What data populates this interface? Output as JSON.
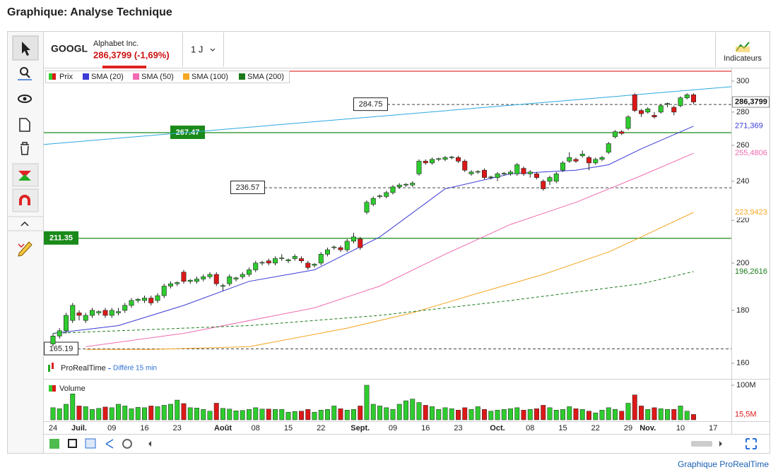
{
  "header": {
    "title": "Graphique: Analyse Technique"
  },
  "quote": {
    "symbol": "GOOGL",
    "name": "Alphabet Inc.",
    "price_change": "286,3799 (-1,69%)",
    "period": "1 J"
  },
  "toolbar": {
    "indicators": "Indicateurs"
  },
  "watermark": {
    "source": "ProRealTime",
    "delay": "Différé 15 min"
  },
  "footer": {
    "link": "Graphique ProRealTime"
  },
  "chart_data": {
    "type": "candlestick",
    "name": "Prix",
    "log_scale": true,
    "up_color": "#2ecc2e",
    "down_color": "#dd1818",
    "ylim": [
      308.6,
      155
    ],
    "yticks": [
      160,
      180,
      200,
      220,
      240,
      260,
      280,
      300
    ],
    "categories": [
      "24",
      null,
      null,
      null,
      "Juil.",
      null,
      null,
      null,
      null,
      "09",
      null,
      null,
      null,
      null,
      "16",
      null,
      null,
      null,
      null,
      "23",
      null,
      null,
      null,
      null,
      null,
      null,
      "Août",
      null,
      null,
      null,
      null,
      "08",
      null,
      null,
      null,
      null,
      "15",
      null,
      null,
      null,
      null,
      "22",
      null,
      null,
      null,
      null,
      null,
      "Sept.",
      null,
      null,
      null,
      null,
      "09",
      null,
      null,
      null,
      null,
      "16",
      null,
      null,
      null,
      null,
      "23",
      null,
      null,
      null,
      null,
      null,
      "Oct.",
      null,
      null,
      null,
      null,
      "08",
      null,
      null,
      null,
      null,
      "15",
      null,
      null,
      null,
      null,
      "22",
      null,
      null,
      null,
      null,
      "29",
      null,
      null,
      "Nov.",
      null,
      null,
      null,
      null,
      "10",
      null,
      null,
      null,
      null,
      "17"
    ],
    "open": [
      167,
      170,
      172,
      176,
      179,
      176,
      178,
      179,
      180,
      178,
      179,
      180,
      182,
      184,
      184,
      185,
      184,
      186,
      190,
      191,
      196,
      192,
      192,
      193,
      194,
      195,
      190,
      191,
      193,
      194,
      195,
      197,
      200,
      201,
      200,
      202,
      201,
      202,
      202,
      200,
      199,
      200,
      204,
      207,
      207,
      206,
      210,
      211,
      224,
      228,
      232,
      232,
      234,
      237,
      238,
      238,
      244,
      251,
      250,
      252,
      252,
      253,
      253,
      251,
      244,
      245,
      246,
      242,
      242,
      244,
      244,
      244,
      247,
      244,
      244,
      240,
      240,
      240,
      246,
      251,
      252,
      254,
      253,
      250,
      252,
      256,
      265,
      268,
      270,
      291,
      281,
      280,
      278,
      280,
      285,
      283,
      284,
      289,
      291,
      null,
      null,
      null
    ],
    "high": [
      171,
      173,
      179,
      183,
      180,
      179,
      181,
      180,
      181,
      181,
      181,
      183,
      185,
      185,
      186,
      186,
      187,
      191,
      192,
      192,
      197,
      193,
      194,
      195,
      196,
      196,
      191,
      195,
      194,
      196,
      198,
      201,
      201,
      202,
      203,
      204,
      202,
      204,
      203,
      201,
      200,
      205,
      207,
      208,
      208,
      211,
      214,
      212,
      230,
      232,
      233,
      235,
      238,
      239,
      239,
      240,
      252,
      252,
      253,
      253,
      254,
      254,
      254,
      252,
      246,
      246,
      247,
      243,
      245,
      245,
      246,
      250,
      248,
      246,
      245,
      241,
      243,
      245,
      251,
      256,
      253,
      257,
      254,
      253,
      254,
      262,
      269,
      269,
      278,
      292,
      282,
      283,
      280,
      285,
      286,
      284,
      290,
      292,
      292,
      null,
      null,
      null
    ],
    "low": [
      166,
      169,
      171,
      175,
      176,
      175,
      177,
      178,
      177,
      177,
      178,
      179,
      181,
      183,
      183,
      182,
      183,
      185,
      189,
      190,
      191,
      191,
      191,
      192,
      193,
      190,
      188,
      190,
      192,
      193,
      194,
      196,
      199,
      199,
      199,
      201,
      200,
      201,
      200,
      197,
      198,
      199,
      203,
      206,
      205,
      205,
      209,
      206,
      223,
      227,
      231,
      231,
      233,
      236,
      237,
      237,
      243,
      249,
      249,
      251,
      251,
      252,
      250,
      245,
      243,
      244,
      241,
      241,
      240,
      243,
      243,
      243,
      243,
      242,
      241,
      235,
      238,
      239,
      245,
      250,
      250,
      253,
      246,
      249,
      251,
      255,
      264,
      266,
      269,
      280,
      277,
      279,
      276,
      279,
      283,
      278,
      283,
      288,
      285,
      null,
      null,
      null
    ],
    "close": [
      170,
      172,
      178,
      182,
      178,
      178,
      180,
      179.5,
      178,
      180,
      179.5,
      182,
      184,
      184.5,
      185,
      183,
      186,
      190,
      191,
      191.5,
      192,
      192.5,
      193,
      194,
      195,
      191,
      190.2,
      194,
      193.5,
      195,
      197,
      200,
      200.3,
      200,
      202,
      202.3,
      201.5,
      203,
      201,
      198,
      199.5,
      204,
      206,
      207.3,
      206,
      210,
      212,
      207,
      229,
      231,
      232.3,
      234,
      237,
      238,
      238.4,
      239,
      251,
      250,
      252,
      252.4,
      253,
      253.3,
      251,
      246,
      245,
      245.3,
      242,
      242.3,
      244,
      244.3,
      245,
      249,
      244,
      245,
      242,
      236,
      242,
      244,
      250,
      253,
      251,
      255,
      250,
      252,
      253,
      261,
      268,
      267,
      277,
      281,
      279,
      282,
      277,
      284,
      285.4,
      280,
      289,
      291,
      286.3799,
      null,
      null,
      null
    ],
    "last_label": {
      "value": 286.3799,
      "label": "286,3799"
    },
    "series": [
      {
        "name": "SMA (20)",
        "color": "#3b3bd6",
        "line_style": "solid",
        "x": [
          0,
          10,
          20,
          30,
          40,
          50,
          60,
          70,
          80,
          85,
          90,
          98
        ],
        "values": [
          171,
          174,
          182,
          192,
          197,
          212,
          236,
          244,
          246,
          249,
          258,
          271.369
        ],
        "last_label": {
          "value": 271.369,
          "label": "271,369"
        }
      },
      {
        "name": "SMA (50)",
        "color": "#f06bb0",
        "line_style": "solid",
        "x": [
          5,
          20,
          40,
          50,
          60,
          70,
          80,
          90,
          98
        ],
        "values": [
          166,
          171,
          181,
          190,
          204,
          218,
          229,
          243,
          255.4806
        ],
        "last_label": {
          "value": 255.4806,
          "label": "255,4806"
        }
      },
      {
        "name": "SMA (100)",
        "color": "#f5a623",
        "line_style": "solid",
        "x": [
          5,
          15,
          30,
          45,
          55,
          65,
          75,
          85,
          90,
          98
        ],
        "values": [
          165,
          165,
          166,
          173,
          179,
          187,
          195,
          205,
          212,
          223.9423
        ],
        "last_label": {
          "value": 223.9423,
          "label": "223,9423"
        }
      },
      {
        "name": "SMA (200)",
        "color": "#1a7a1a",
        "line_style": "dashed",
        "x": [
          0,
          30,
          50,
          70,
          90,
          98
        ],
        "values": [
          171,
          174,
          178,
          184,
          191,
          196.2616
        ],
        "last_label": {
          "value": 196.2616,
          "label": "196,2616"
        }
      }
    ],
    "levels": [
      {
        "value": 306.7,
        "color": "#e02020",
        "style": "solid"
      },
      {
        "value": 284.75,
        "color": "#444444",
        "style": "dashed"
      },
      {
        "value": 267.47,
        "color": "#1a8a1a",
        "style": "solid"
      },
      {
        "value": 236.57,
        "color": "#444444",
        "style": "dashed"
      },
      {
        "value": 211.35,
        "color": "#1a8a1a",
        "style": "solid"
      },
      {
        "value": 165.19,
        "color": "#444444",
        "style": "dashed"
      }
    ],
    "trendline": {
      "color": "#2aa8e0",
      "start": 260.5,
      "end": 296.3
    },
    "volume": {
      "name": "Volume",
      "ylim": [
        0,
        100
      ],
      "yticks": [
        {
          "value": 100,
          "label": "100M"
        }
      ],
      "values": [
        35,
        32,
        45,
        75,
        40,
        38,
        30,
        33,
        37,
        35,
        45,
        40,
        32,
        36,
        35,
        40,
        38,
        42,
        45,
        57,
        47,
        35,
        34,
        30,
        25,
        48,
        33,
        31,
        26,
        27,
        30,
        35,
        31,
        31,
        30,
        30,
        22,
        24,
        25,
        30,
        22,
        28,
        30,
        40,
        32,
        28,
        30,
        40,
        100,
        45,
        40,
        35,
        30,
        45,
        55,
        60,
        50,
        42,
        38,
        30,
        35,
        32,
        28,
        35,
        30,
        38,
        30,
        25,
        28,
        30,
        32,
        35,
        28,
        30,
        32,
        42,
        35,
        28,
        30,
        38,
        32,
        30,
        25,
        20,
        28,
        35,
        30,
        25,
        48,
        72,
        40,
        30,
        35,
        32,
        30,
        30,
        40,
        25,
        15.5,
        null,
        null,
        null
      ],
      "last_label": {
        "value": 15.5,
        "label": "15,5M"
      }
    }
  }
}
